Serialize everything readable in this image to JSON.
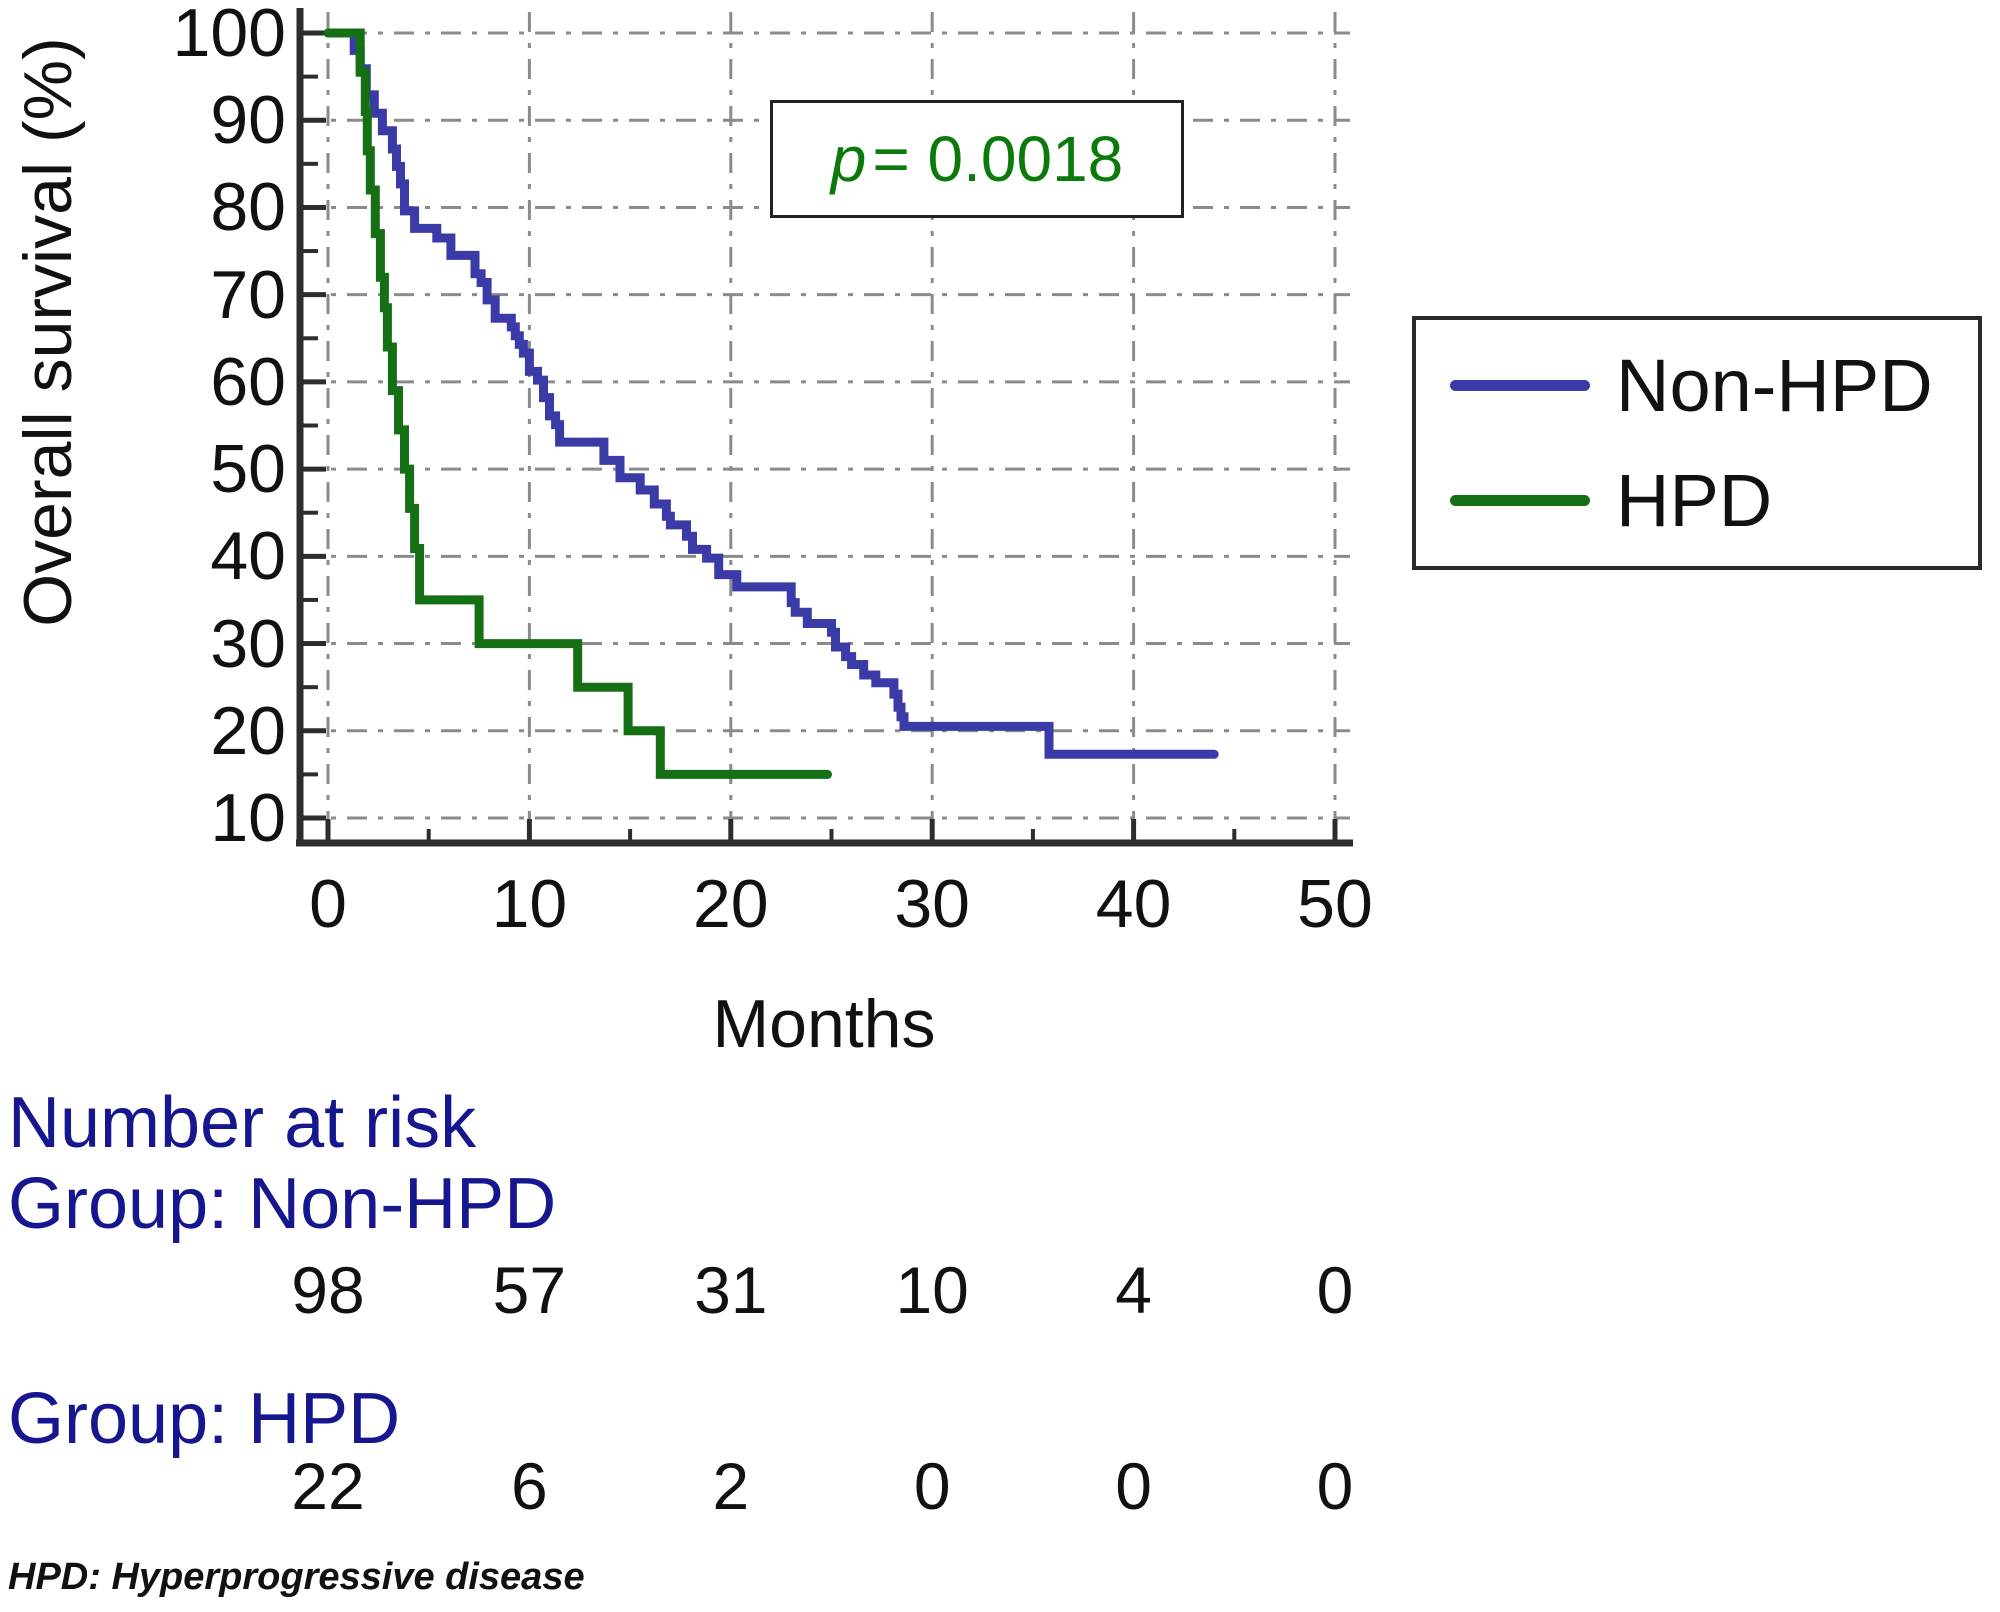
{
  "chart_data": {
    "type": "line",
    "subtype": "kaplan-meier-step",
    "title": "",
    "xlabel": "Months",
    "ylabel": "Overall survival (%)",
    "xlim": [
      0,
      50
    ],
    "ylim": [
      10,
      100
    ],
    "x_ticks": [
      0,
      10,
      20,
      30,
      40,
      50
    ],
    "x_minor_ticks": [
      5,
      15,
      25,
      35,
      45
    ],
    "y_ticks": [
      100,
      90,
      80,
      70,
      60,
      50,
      40,
      30,
      20,
      10
    ],
    "y_minor_ticks": [
      95,
      85,
      75,
      65,
      55,
      45,
      35,
      25,
      15
    ],
    "grid": true,
    "grid_color": "#8b8b8b",
    "axis_color": "#2d2d2d",
    "annotation": {
      "symbol": "p",
      "rest": "= 0.0018",
      "color": "#0b7a0b"
    },
    "legend": {
      "position": "right",
      "entries": [
        {
          "label": "Non-HPD",
          "color": "#3b3ba8"
        },
        {
          "label": "HPD",
          "color": "#156f15"
        }
      ]
    },
    "series": [
      {
        "name": "Non-HPD",
        "color": "#3b3ba8",
        "end": 44.0,
        "steps": [
          [
            0,
            100
          ],
          [
            1.3,
            98
          ],
          [
            1.6,
            95.9
          ],
          [
            1.9,
            92.9
          ],
          [
            2.3,
            90.8
          ],
          [
            2.7,
            88.8
          ],
          [
            3.2,
            86.7
          ],
          [
            3.4,
            84.7
          ],
          [
            3.6,
            82.7
          ],
          [
            3.8,
            79.6
          ],
          [
            4.3,
            77.6
          ],
          [
            5.4,
            76.5
          ],
          [
            6.1,
            74.5
          ],
          [
            7.3,
            72.4
          ],
          [
            7.6,
            71.4
          ],
          [
            7.9,
            69.4
          ],
          [
            8.3,
            67.3
          ],
          [
            9.1,
            66.3
          ],
          [
            9.3,
            65.3
          ],
          [
            9.5,
            64.3
          ],
          [
            9.7,
            63.3
          ],
          [
            10,
            61.2
          ],
          [
            10.4,
            60.2
          ],
          [
            10.7,
            58.2
          ],
          [
            11,
            56.1
          ],
          [
            11.3,
            55.1
          ],
          [
            11.5,
            53.1
          ],
          [
            13.7,
            51
          ],
          [
            14.5,
            49
          ],
          [
            15.5,
            47.6
          ],
          [
            16.2,
            46
          ],
          [
            16.8,
            44.6
          ],
          [
            17,
            43.6
          ],
          [
            17.8,
            42.3
          ],
          [
            18.1,
            40.8
          ],
          [
            18.8,
            39.8
          ],
          [
            19.4,
            37.9
          ],
          [
            20.3,
            36.5
          ],
          [
            23,
            34.7
          ],
          [
            23.2,
            33.6
          ],
          [
            23.8,
            32.3
          ],
          [
            25,
            31.3
          ],
          [
            25.2,
            29.6
          ],
          [
            25.7,
            28.5
          ],
          [
            26,
            27.6
          ],
          [
            26.6,
            26.4
          ],
          [
            27.2,
            25.5
          ],
          [
            28.1,
            24.2
          ],
          [
            28.3,
            22.7
          ],
          [
            28.45,
            21.6
          ],
          [
            28.6,
            20.5
          ],
          [
            35.8,
            17.3
          ]
        ]
      },
      {
        "name": "HPD",
        "color": "#156f15",
        "end": 24.8,
        "steps": [
          [
            0,
            100
          ],
          [
            1.6,
            95.5
          ],
          [
            1.85,
            91
          ],
          [
            1.95,
            86.5
          ],
          [
            2.1,
            82
          ],
          [
            2.35,
            77
          ],
          [
            2.6,
            72
          ],
          [
            2.8,
            68.5
          ],
          [
            2.95,
            64
          ],
          [
            3.2,
            59
          ],
          [
            3.5,
            54.5
          ],
          [
            3.8,
            50
          ],
          [
            4.05,
            45.5
          ],
          [
            4.3,
            40.9
          ],
          [
            4.55,
            35
          ],
          [
            7.5,
            30
          ],
          [
            12.4,
            25
          ],
          [
            14.9,
            20
          ],
          [
            16.5,
            15
          ]
        ]
      }
    ]
  },
  "risk_table": {
    "title": "Number at risk",
    "text_color": "#16168f",
    "count_months": [
      0,
      10,
      20,
      30,
      40,
      50
    ],
    "groups": [
      {
        "label": "Group: Non-HPD",
        "counts": [
          "98",
          "57",
          "31",
          "10",
          "4",
          "0"
        ]
      },
      {
        "label": "Group: HPD",
        "counts": [
          "22",
          "6",
          "2",
          "0",
          "0",
          "0"
        ]
      }
    ]
  },
  "footnote": "HPD: Hyperprogressive disease"
}
